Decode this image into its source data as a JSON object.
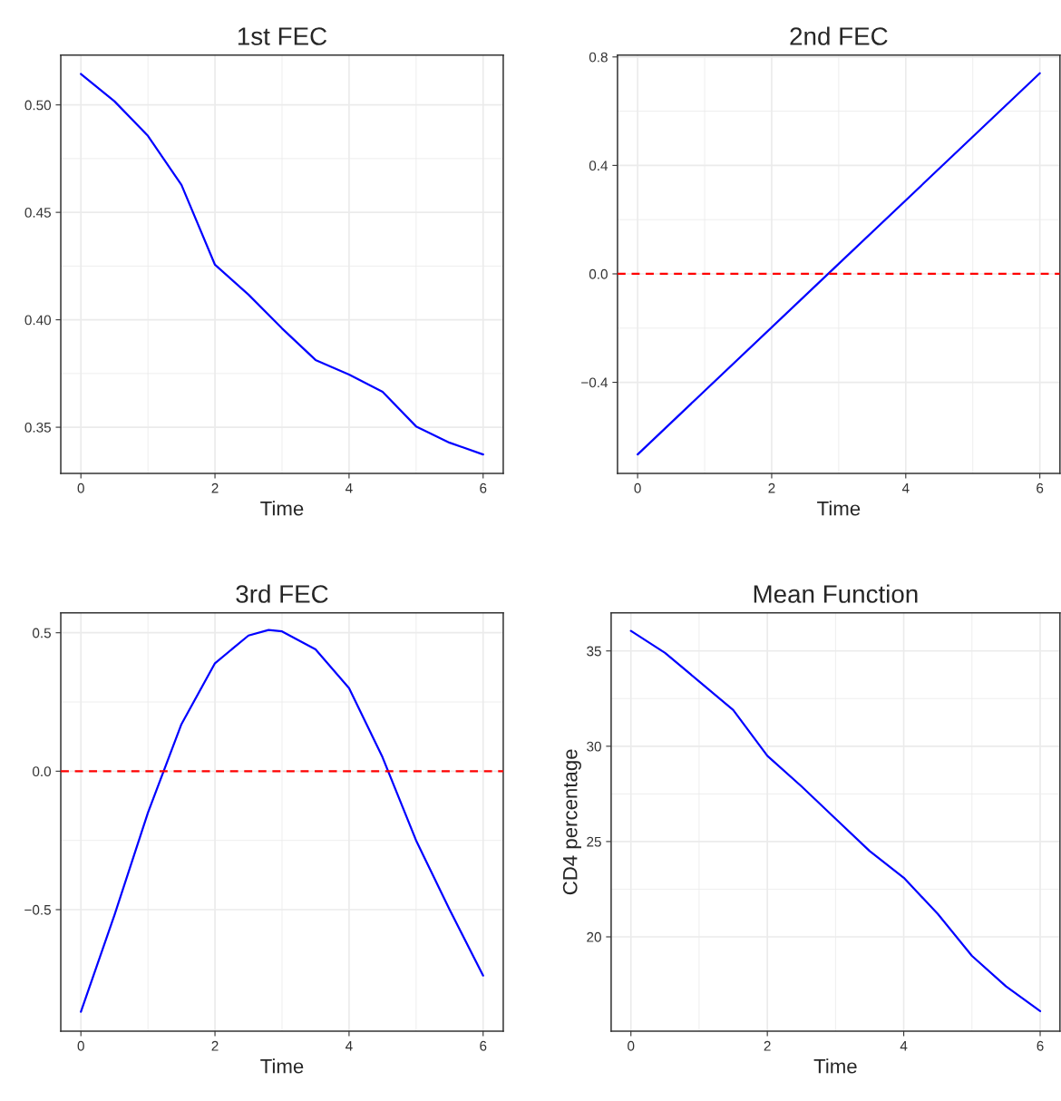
{
  "chart_data": [
    {
      "type": "line",
      "title": "1st FEC",
      "xlabel": "Time",
      "x": [
        0,
        0.5,
        1,
        1.5,
        2,
        2.5,
        3,
        3.5,
        4,
        4.5,
        5,
        5.5,
        6
      ],
      "series": [
        {
          "color": "#0000ff",
          "values": [
            0.5144,
            0.5017,
            0.4856,
            0.4628,
            0.4256,
            0.4117,
            0.396,
            0.3813,
            0.3745,
            0.3665,
            0.3504,
            0.3428,
            0.3373
          ]
        }
      ],
      "xlim": [
        -0.3,
        6.3
      ],
      "ylim": [
        0.3285,
        0.5232
      ],
      "xticks": [
        0,
        2,
        4,
        6
      ],
      "yticks": [
        {
          "value": 0.35,
          "label": "0.35"
        },
        {
          "value": 0.4,
          "label": "0.40"
        },
        {
          "value": 0.45,
          "label": "0.45"
        },
        {
          "value": 0.5,
          "label": "0.50"
        }
      ],
      "grid": true,
      "marker": "none",
      "line_style": "solid"
    },
    {
      "type": "line",
      "title": "2nd FEC",
      "xlabel": "Time",
      "x": [
        0,
        3,
        6
      ],
      "series": [
        {
          "color": "#0000ff",
          "values": [
            -0.666,
            0.037,
            0.74
          ]
        }
      ],
      "xlim": [
        -0.3,
        6.3
      ],
      "ylim": [
        -0.736,
        0.807
      ],
      "xticks": [
        0,
        2,
        4,
        6
      ],
      "yticks": [
        {
          "value": -0.4,
          "label": "−0.4"
        },
        {
          "value": 0,
          "label": "0.0"
        },
        {
          "value": 0.4,
          "label": "0.4"
        },
        {
          "value": 0.8,
          "label": "0.8"
        }
      ],
      "ref_lines": [
        {
          "axis": "y",
          "value": 0,
          "color": "#ff0000",
          "line_style": "dashed"
        }
      ],
      "grid": true,
      "marker": "none",
      "line_style": "solid"
    },
    {
      "type": "line",
      "title": "3rd FEC",
      "xlabel": "Time",
      "x": [
        0,
        0.5,
        1,
        1.5,
        2,
        2.5,
        2.8,
        3,
        3.5,
        4,
        4.5,
        5,
        5.5,
        6
      ],
      "series": [
        {
          "color": "#0000ff",
          "values": [
            -0.869,
            -0.52,
            -0.15,
            0.17,
            0.39,
            0.49,
            0.51,
            0.505,
            0.44,
            0.3,
            0.05,
            -0.25,
            -0.5,
            -0.738
          ]
        }
      ],
      "xlim": [
        -0.3,
        6.3
      ],
      "ylim": [
        -0.939,
        0.572
      ],
      "xticks": [
        0,
        2,
        4,
        6
      ],
      "yticks": [
        {
          "value": -0.5,
          "label": "−0.5"
        },
        {
          "value": 0,
          "label": "0.0"
        },
        {
          "value": 0.5,
          "label": "0.5"
        }
      ],
      "ref_lines": [
        {
          "axis": "y",
          "value": 0,
          "color": "#ff0000",
          "line_style": "dashed"
        }
      ],
      "grid": true,
      "marker": "none",
      "line_style": "solid"
    },
    {
      "type": "line",
      "title": "Mean Function",
      "xlabel": "Time",
      "ylabel": "CD4 percentage",
      "x": [
        0,
        0.5,
        1,
        1.5,
        2,
        2.5,
        3,
        3.5,
        4,
        4.5,
        5,
        5.5,
        6
      ],
      "series": [
        {
          "color": "#0000ff",
          "values": [
            36.05,
            34.9,
            33.4,
            31.9,
            29.5,
            27.9,
            26.2,
            24.5,
            23.1,
            21.2,
            19.0,
            17.4,
            16.1
          ]
        }
      ],
      "xlim": [
        -0.29,
        6.29
      ],
      "ylim": [
        15.05,
        37
      ],
      "xticks": [
        0,
        2,
        4,
        6
      ],
      "yticks": [
        20,
        25,
        30,
        35
      ],
      "grid": true,
      "marker": "none",
      "line_style": "solid"
    }
  ]
}
